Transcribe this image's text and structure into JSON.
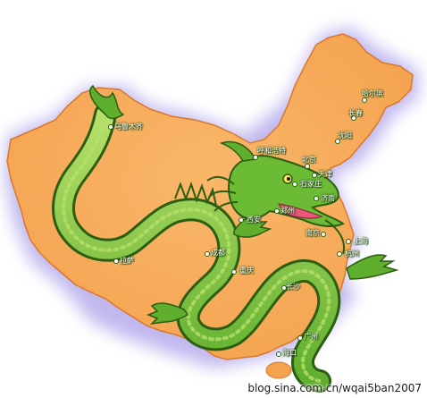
{
  "map": {
    "colors": {
      "land": "#f4a24e",
      "land_edge": "#d9772c",
      "halo": "#8e7fe0",
      "dragon": "#5fae2e",
      "dragon_dark": "#2c5e12",
      "dragon_light": "#b6e06a",
      "mouth": "#e8577a"
    },
    "cities": [
      {
        "id": "urumqi",
        "name": "乌鲁木齐"
      },
      {
        "id": "hohhot",
        "name": "呼和浩特"
      },
      {
        "id": "beijing",
        "name": "北京"
      },
      {
        "id": "harbin",
        "name": "哈尔滨"
      },
      {
        "id": "changchun",
        "name": "长春"
      },
      {
        "id": "shenyang",
        "name": "沈阳"
      },
      {
        "id": "tianjin",
        "name": "天津"
      },
      {
        "id": "shijiazhuang",
        "name": "石家庄"
      },
      {
        "id": "jinan",
        "name": "济南"
      },
      {
        "id": "zhengzhou",
        "name": "郑州"
      },
      {
        "id": "xian",
        "name": "西安"
      },
      {
        "id": "nanjing",
        "name": "南京"
      },
      {
        "id": "shanghai",
        "name": "上海"
      },
      {
        "id": "hangzhou",
        "name": "杭州"
      },
      {
        "id": "chongqing",
        "name": "重庆"
      },
      {
        "id": "changsha",
        "name": "长沙"
      },
      {
        "id": "guangzhou",
        "name": "广州"
      },
      {
        "id": "haikou",
        "name": "海口"
      },
      {
        "id": "lhasa",
        "name": "拉萨"
      },
      {
        "id": "chengdu",
        "name": "成都"
      }
    ]
  },
  "watermark": {
    "text": "blog.sina.com.cn/wqai5ban2007"
  }
}
